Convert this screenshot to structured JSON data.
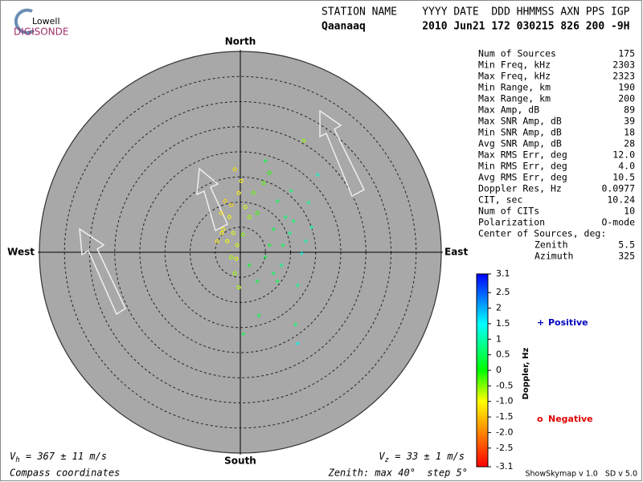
{
  "logo": {
    "top": "Lowell",
    "bottom": "DIGISONDE"
  },
  "header": {
    "line1": "STATION NAME    YYYY DATE  DDD HHMMSS AXN PPS IGP",
    "line2": "Qaanaaq         2010 Jun21 172 030215 826 200 -9H"
  },
  "compass": {
    "north": "North",
    "south": "South",
    "east": "East",
    "west": "West"
  },
  "stats": [
    [
      "Num of Sources",
      "175"
    ],
    [
      "Min Freq, kHz",
      "2303"
    ],
    [
      "Max Freq, kHz",
      "2323"
    ],
    [
      "Min Range, km",
      "190"
    ],
    [
      "Max Range, km",
      "200"
    ],
    [
      "Max Amp, dB",
      "89"
    ],
    [
      "Max SNR Amp, dB",
      "39"
    ],
    [
      "Min SNR Amp, dB",
      "18"
    ],
    [
      "Avg SNR Amp, dB",
      "28"
    ],
    [
      "Max RMS Err, deg",
      "12.0"
    ],
    [
      "Min RMS Err, deg",
      "4.0"
    ],
    [
      "Avg RMS Err, deg",
      "10.5"
    ],
    [
      "Doppler Res, Hz",
      "0.0977"
    ],
    [
      "CIT, sec",
      "10.24"
    ],
    [
      "Num of CITs",
      "10"
    ],
    [
      "Polarization",
      "O-mode"
    ]
  ],
  "center": {
    "title": "Center of Sources, deg:",
    "rows": [
      [
        "Zenith",
        "5.5"
      ],
      [
        "Azimuth",
        "325"
      ]
    ]
  },
  "colorbar": {
    "label": "Doppler, Hz",
    "lim": [
      -3.1,
      3.1
    ],
    "ticks": [
      3.1,
      2.5,
      2,
      1.5,
      1,
      0.5,
      0,
      -0.5,
      {
        "value": -1,
        "label": "-1.0"
      },
      -1.5,
      {
        "value": -2,
        "label": "-2.0"
      },
      -2.5,
      -3.1
    ]
  },
  "legend": {
    "positive": {
      "symbol": "+",
      "label": "Positive",
      "color": "#0000c0"
    },
    "negative": {
      "symbol": "o",
      "label": "Negative",
      "color": "#e00000"
    }
  },
  "footer": {
    "vh": [
      "V",
      "h",
      " = 367 ± 11 m/s"
    ],
    "vz": [
      "V",
      "z",
      " = 33 ± 1 m/s"
    ],
    "coords": "Compass coordinates",
    "zenith": "Zenith: max 40°  step 5°",
    "version": "ShowSkymap v 1.0   SD v 5.0"
  },
  "sources": {
    "negative": [
      [
        -1.1,
        16.5,
        -1.2
      ],
      [
        -0.3,
        11.8,
        -1.1
      ],
      [
        -3.0,
        10.2,
        -1.3
      ],
      [
        -3.8,
        7.8,
        -1.2
      ],
      [
        -2.2,
        7.0,
        -1.0
      ],
      [
        -3.4,
        4.6,
        -1.1
      ],
      [
        -1.4,
        3.8,
        -0.9
      ],
      [
        -2.6,
        2.2,
        -1.0
      ],
      [
        -0.6,
        1.4,
        -0.8
      ],
      [
        -1.8,
        -1.0,
        -0.7
      ],
      [
        -1.1,
        -4.2,
        -0.6
      ],
      [
        -0.3,
        -7.0,
        -0.7
      ],
      [
        0.2,
        14.2,
        -1.0
      ],
      [
        1.0,
        9.0,
        -0.8
      ],
      [
        1.8,
        7.0,
        -0.6
      ],
      [
        2.6,
        11.8,
        -0.4
      ],
      [
        3.4,
        7.8,
        -0.2
      ],
      [
        4.6,
        13.8,
        -0.3
      ],
      [
        5.8,
        15.8,
        -0.1
      ],
      [
        12.6,
        22.2,
        -0.6
      ],
      [
        -4.6,
        2.2,
        -1.2
      ],
      [
        -1.8,
        9.4,
        -1.3
      ],
      [
        0.5,
        3.5,
        -0.5
      ],
      [
        -3.7,
        3.8,
        -1.1
      ],
      [
        -0.8,
        -1.3,
        -0.9
      ]
    ],
    "positive": [
      [
        5.0,
        18.2,
        0.4
      ],
      [
        10.1,
        12.2,
        0.6
      ],
      [
        15.4,
        15.4,
        1.2
      ],
      [
        13.6,
        9.9,
        0.8
      ],
      [
        7.4,
        10.2,
        0.5
      ],
      [
        9.0,
        7.0,
        0.6
      ],
      [
        6.6,
        4.6,
        0.4
      ],
      [
        9.8,
        3.8,
        0.7
      ],
      [
        13.0,
        2.2,
        0.9
      ],
      [
        12.2,
        -0.2,
        1.3
      ],
      [
        8.2,
        -2.6,
        0.7
      ],
      [
        5.0,
        -1.0,
        0.3
      ],
      [
        3.4,
        -5.8,
        0.3
      ],
      [
        7.4,
        -5.8,
        0.5
      ],
      [
        11.4,
        -6.6,
        0.8
      ],
      [
        3.7,
        -12.6,
        0.4
      ],
      [
        0.6,
        -16.3,
        0.5
      ],
      [
        11.0,
        -14.4,
        0.6
      ],
      [
        11.4,
        -18.2,
        1.4
      ],
      [
        1.8,
        -2.6,
        0.2
      ],
      [
        5.8,
        1.4,
        0.3
      ],
      [
        8.5,
        1.4,
        0.5
      ],
      [
        14.2,
        5.0,
        0.9
      ],
      [
        10.6,
        6.2,
        0.6
      ],
      [
        6.6,
        -4.2,
        0.5
      ]
    ]
  }
}
